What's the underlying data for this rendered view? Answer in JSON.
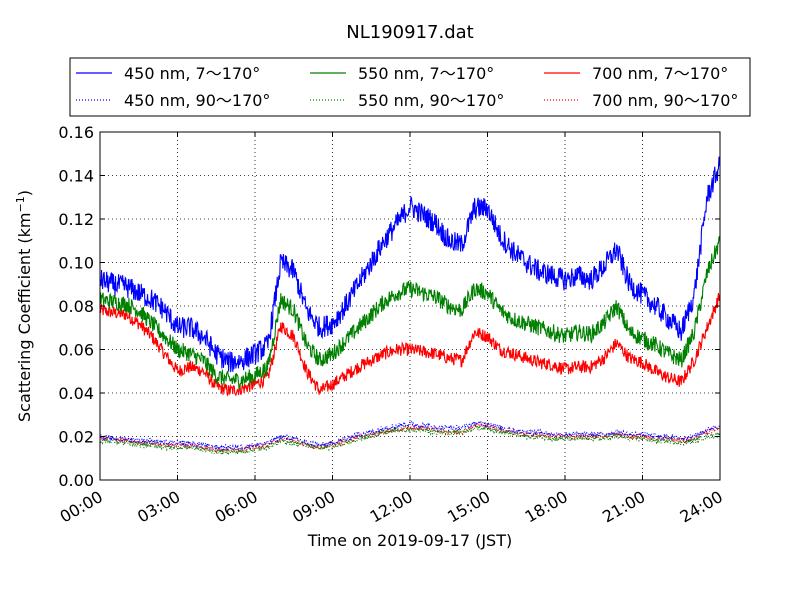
{
  "chart_data": {
    "type": "line",
    "title": "NL190917.dat",
    "xlabel": "Time on 2019-09-17 (JST)",
    "ylabel_main": "Scattering Coefficient (km",
    "ylabel_sup": "−1",
    "ylabel_close": ")",
    "xlim": [
      0,
      24
    ],
    "ylim": [
      0,
      0.16
    ],
    "grid": true,
    "legend_position": "top",
    "x_ticks": [
      0,
      3,
      6,
      9,
      12,
      15,
      18,
      21,
      24
    ],
    "x_tick_labels": [
      "00:00",
      "03:00",
      "06:00",
      "09:00",
      "12:00",
      "15:00",
      "18:00",
      "21:00",
      "24:00"
    ],
    "y_ticks": [
      0,
      0.02,
      0.04,
      0.06,
      0.08,
      0.1,
      0.12,
      0.14,
      0.16
    ],
    "y_tick_labels": [
      "0.00",
      "0.02",
      "0.04",
      "0.06",
      "0.08",
      "0.10",
      "0.12",
      "0.14",
      "0.16"
    ],
    "x": [
      0,
      0.5,
      1,
      1.5,
      2,
      2.5,
      3,
      3.5,
      4,
      4.5,
      5,
      5.5,
      6,
      6.5,
      7,
      7.5,
      8,
      8.5,
      9,
      9.5,
      10,
      10.5,
      11,
      11.5,
      12,
      12.5,
      13,
      13.5,
      14,
      14.5,
      15,
      15.5,
      16,
      16.5,
      17,
      17.5,
      18,
      18.5,
      19,
      19.5,
      20,
      20.5,
      21,
      21.5,
      22,
      22.5,
      23,
      23.5,
      24
    ],
    "series": [
      {
        "name": "450 nm, 7～170°",
        "color": "#0000ff",
        "style": "solid",
        "values": [
          0.092,
          0.09,
          0.089,
          0.086,
          0.083,
          0.078,
          0.07,
          0.07,
          0.066,
          0.058,
          0.054,
          0.055,
          0.058,
          0.062,
          0.1,
          0.096,
          0.078,
          0.07,
          0.072,
          0.08,
          0.09,
          0.1,
          0.11,
          0.118,
          0.126,
          0.122,
          0.118,
          0.11,
          0.108,
          0.125,
          0.125,
          0.112,
          0.105,
          0.1,
          0.096,
          0.094,
          0.092,
          0.094,
          0.092,
          0.098,
          0.106,
          0.09,
          0.085,
          0.08,
          0.074,
          0.068,
          0.085,
          0.13,
          0.145
        ]
      },
      {
        "name": "450 nm, 90～170°",
        "color": "#0000ff",
        "style": "dotted",
        "values": [
          0.02,
          0.019,
          0.019,
          0.018,
          0.018,
          0.017,
          0.017,
          0.017,
          0.016,
          0.015,
          0.015,
          0.015,
          0.016,
          0.017,
          0.02,
          0.019,
          0.017,
          0.016,
          0.017,
          0.019,
          0.021,
          0.022,
          0.024,
          0.025,
          0.026,
          0.025,
          0.024,
          0.024,
          0.024,
          0.026,
          0.026,
          0.024,
          0.023,
          0.022,
          0.022,
          0.021,
          0.021,
          0.021,
          0.021,
          0.021,
          0.022,
          0.021,
          0.021,
          0.02,
          0.02,
          0.019,
          0.02,
          0.023,
          0.025
        ]
      },
      {
        "name": "550 nm, 7～170°",
        "color": "#008000",
        "style": "solid",
        "values": [
          0.083,
          0.082,
          0.081,
          0.078,
          0.072,
          0.066,
          0.06,
          0.058,
          0.055,
          0.048,
          0.046,
          0.046,
          0.048,
          0.052,
          0.083,
          0.078,
          0.062,
          0.055,
          0.058,
          0.064,
          0.07,
          0.076,
          0.082,
          0.086,
          0.088,
          0.086,
          0.084,
          0.08,
          0.078,
          0.088,
          0.086,
          0.078,
          0.074,
          0.072,
          0.07,
          0.068,
          0.066,
          0.068,
          0.067,
          0.072,
          0.08,
          0.068,
          0.065,
          0.062,
          0.058,
          0.055,
          0.068,
          0.095,
          0.11
        ]
      },
      {
        "name": "550 nm, 90～170°",
        "color": "#008000",
        "style": "dotted",
        "values": [
          0.018,
          0.018,
          0.017,
          0.016,
          0.016,
          0.015,
          0.015,
          0.015,
          0.014,
          0.013,
          0.013,
          0.013,
          0.014,
          0.015,
          0.018,
          0.017,
          0.016,
          0.015,
          0.015,
          0.017,
          0.019,
          0.02,
          0.022,
          0.023,
          0.023,
          0.023,
          0.022,
          0.022,
          0.022,
          0.024,
          0.024,
          0.022,
          0.021,
          0.02,
          0.02,
          0.019,
          0.019,
          0.019,
          0.019,
          0.019,
          0.02,
          0.019,
          0.019,
          0.018,
          0.018,
          0.017,
          0.018,
          0.02,
          0.021
        ]
      },
      {
        "name": "700 nm, 7～170°",
        "color": "#ff0000",
        "style": "solid",
        "values": [
          0.078,
          0.077,
          0.076,
          0.072,
          0.066,
          0.058,
          0.05,
          0.052,
          0.05,
          0.043,
          0.041,
          0.042,
          0.044,
          0.047,
          0.071,
          0.066,
          0.05,
          0.041,
          0.044,
          0.048,
          0.052,
          0.055,
          0.058,
          0.06,
          0.06,
          0.059,
          0.058,
          0.056,
          0.055,
          0.068,
          0.066,
          0.06,
          0.058,
          0.056,
          0.054,
          0.053,
          0.051,
          0.052,
          0.052,
          0.056,
          0.063,
          0.056,
          0.054,
          0.05,
          0.047,
          0.045,
          0.055,
          0.07,
          0.085
        ]
      },
      {
        "name": "700 nm, 90～170°",
        "color": "#ff0000",
        "style": "dotted",
        "values": [
          0.019,
          0.019,
          0.018,
          0.017,
          0.017,
          0.016,
          0.016,
          0.016,
          0.015,
          0.014,
          0.014,
          0.014,
          0.015,
          0.016,
          0.019,
          0.018,
          0.016,
          0.015,
          0.016,
          0.018,
          0.02,
          0.021,
          0.022,
          0.023,
          0.024,
          0.024,
          0.023,
          0.022,
          0.022,
          0.025,
          0.025,
          0.023,
          0.022,
          0.021,
          0.021,
          0.02,
          0.02,
          0.02,
          0.02,
          0.02,
          0.021,
          0.02,
          0.02,
          0.019,
          0.019,
          0.018,
          0.019,
          0.022,
          0.024
        ]
      }
    ]
  }
}
